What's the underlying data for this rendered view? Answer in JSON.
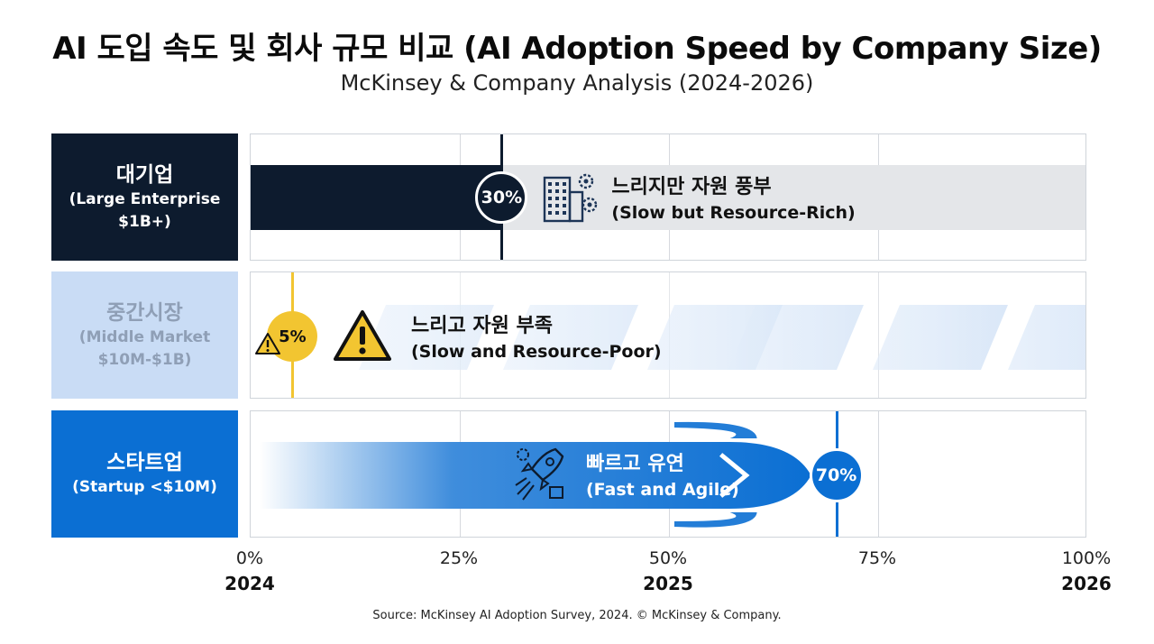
{
  "title": "AI 도입 속도 및 회사 규모 비교 (AI Adoption Speed by Company Size)",
  "subtitle": "McKinsey & Company Analysis (2024-2026)",
  "source": "Source: McKinsey AI Adoption Survey, 2024. © McKinsey & Company.",
  "colors": {
    "large": "#0d1b2e",
    "middle": "#f2c531",
    "startup": "#0b6fd3",
    "track": "#e4e6e9"
  },
  "chart_data": {
    "type": "bar",
    "orientation": "horizontal",
    "xlim": [
      0,
      100
    ],
    "x_ticks": [
      "0%",
      "25%",
      "50%",
      "75%",
      "100%"
    ],
    "x_tick_values": [
      0,
      25,
      50,
      75,
      100
    ],
    "x_years": [
      "2024",
      "2025",
      "2026"
    ],
    "x_year_values": [
      0,
      50,
      100
    ],
    "categories": [
      {
        "key": "large",
        "label_ko": "대기업",
        "label_en_1": "(Large Enterprise",
        "label_en_2": "$1B+)",
        "value": 30,
        "value_label": "30%",
        "note_ko": "느리지만 자원 풍부",
        "note_en": "(Slow but Resource-Rich)",
        "icon": "building-gear-icon"
      },
      {
        "key": "middle",
        "label_ko": "중간시장",
        "label_en_1": "(Middle Market",
        "label_en_2": "$10M-$1B)",
        "value": 5,
        "value_label": "5%",
        "note_ko": "느리고 자원 부족",
        "note_en": "(Slow and Resource-Poor)",
        "icon": "warning-icon"
      },
      {
        "key": "startup",
        "label_ko": "스타트업",
        "label_en_1": "(Startup <$10M)",
        "label_en_2": "",
        "value": 70,
        "value_label": "70%",
        "note_ko": "빠르고 유연",
        "note_en": "(Fast and Agile)",
        "icon": "rocket-ai-icon"
      }
    ]
  }
}
